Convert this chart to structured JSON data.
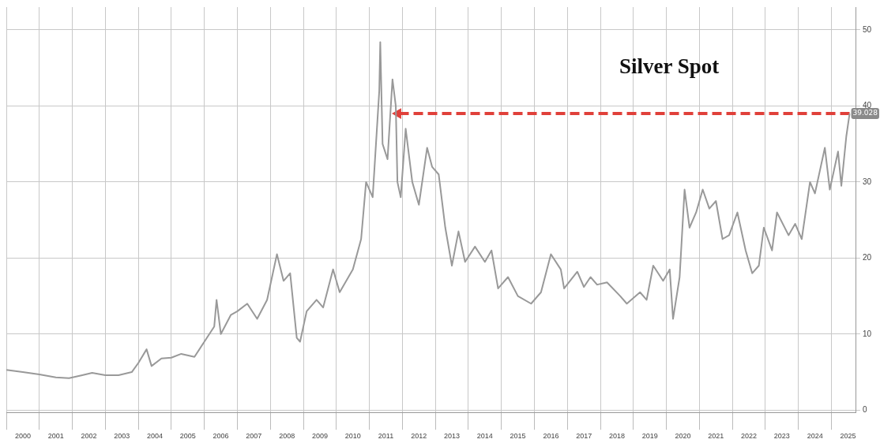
{
  "chart_data": {
    "type": "line",
    "title": "Silver Spot",
    "x": [
      2000.0,
      2000.5,
      2001.0,
      2001.5,
      2001.9,
      2002.3,
      2002.6,
      2003.0,
      2003.4,
      2003.8,
      2004.0,
      2004.25,
      2004.4,
      2004.7,
      2005.0,
      2005.3,
      2005.7,
      2006.0,
      2006.3,
      2006.37,
      2006.5,
      2006.8,
      2007.0,
      2007.3,
      2007.6,
      2007.9,
      2008.2,
      2008.4,
      2008.6,
      2008.8,
      2008.9,
      2009.1,
      2009.4,
      2009.6,
      2009.9,
      2010.1,
      2010.5,
      2010.75,
      2010.9,
      2011.1,
      2011.3,
      2011.33,
      2011.4,
      2011.55,
      2011.7,
      2011.8,
      2011.85,
      2011.95,
      2012.1,
      2012.3,
      2012.5,
      2012.75,
      2012.9,
      2013.1,
      2013.3,
      2013.5,
      2013.7,
      2013.9,
      2014.2,
      2014.5,
      2014.7,
      2014.9,
      2015.2,
      2015.5,
      2015.9,
      2016.2,
      2016.5,
      2016.8,
      2016.9,
      2017.3,
      2017.5,
      2017.7,
      2017.9,
      2018.2,
      2018.6,
      2018.8,
      2019.2,
      2019.4,
      2019.6,
      2019.9,
      2020.1,
      2020.2,
      2020.4,
      2020.55,
      2020.7,
      2020.9,
      2021.1,
      2021.3,
      2021.5,
      2021.7,
      2021.9,
      2022.15,
      2022.4,
      2022.6,
      2022.8,
      2022.95,
      2023.2,
      2023.35,
      2023.7,
      2023.9,
      2024.1,
      2024.35,
      2024.5,
      2024.8,
      2024.95,
      2025.2,
      2025.3,
      2025.45,
      2025.55
    ],
    "series": [
      {
        "color": "#999999",
        "values": [
          5.3,
          5.0,
          4.7,
          4.3,
          4.2,
          4.6,
          4.9,
          4.6,
          4.6,
          5.0,
          6.2,
          8.0,
          5.8,
          6.8,
          6.9,
          7.4,
          7.0,
          9.0,
          11.0,
          14.5,
          10.0,
          12.5,
          13.0,
          14.0,
          12.0,
          14.5,
          20.5,
          17.0,
          18.0,
          9.5,
          9.0,
          13.0,
          14.5,
          13.5,
          18.5,
          15.5,
          18.5,
          22.5,
          30.0,
          28.0,
          42.0,
          48.4,
          35.0,
          33.0,
          43.5,
          40.0,
          30.0,
          28.0,
          37.0,
          30.0,
          27.0,
          34.5,
          32.0,
          31.0,
          24.0,
          19.0,
          23.5,
          19.5,
          21.5,
          19.5,
          21.0,
          16.0,
          17.5,
          15.0,
          14.0,
          15.5,
          20.5,
          18.5,
          16.0,
          18.2,
          16.2,
          17.5,
          16.5,
          16.8,
          15.0,
          14.0,
          15.5,
          14.5,
          19.0,
          17.0,
          18.5,
          12.0,
          17.5,
          29.0,
          24.0,
          26.0,
          29.0,
          26.5,
          27.5,
          22.5,
          23.0,
          26.0,
          21.0,
          18.0,
          19.0,
          24.0,
          21.0,
          26.0,
          23.0,
          24.5,
          22.5,
          30.0,
          28.5,
          34.5,
          29.0,
          34.0,
          29.5,
          36.0,
          39.0
        ]
      },
      {
        "type": "line",
        "color": "#e0403a",
        "line_style": "dashed",
        "marker": "triangle",
        "x": [
          2025.55,
          2011.87
        ],
        "values": [
          39.0,
          39.0
        ]
      }
    ],
    "annotations": [
      {
        "text": "39.028",
        "x": 2025.55,
        "y": 39.0
      }
    ],
    "xlim": [
      2000,
      2025.75
    ],
    "xticks": [
      {
        "value": 2000,
        "label": null
      },
      {
        "value": 2000.5,
        "label": "2000"
      },
      {
        "value": 2001,
        "label": null
      },
      {
        "value": 2001.5,
        "label": "2001"
      },
      {
        "value": 2002,
        "label": null
      },
      {
        "value": 2002.5,
        "label": "2002"
      },
      {
        "value": 2003,
        "label": null
      },
      {
        "value": 2003.5,
        "label": "2003"
      },
      {
        "value": 2004,
        "label": null
      },
      {
        "value": 2004.5,
        "label": "2004"
      },
      {
        "value": 2005,
        "label": null
      },
      {
        "value": 2005.5,
        "label": "2005"
      },
      {
        "value": 2006,
        "label": null
      },
      {
        "value": 2006.5,
        "label": "2006"
      },
      {
        "value": 2007,
        "label": null
      },
      {
        "value": 2007.5,
        "label": "2007"
      },
      {
        "value": 2008,
        "label": null
      },
      {
        "value": 2008.5,
        "label": "2008"
      },
      {
        "value": 2009,
        "label": null
      },
      {
        "value": 2009.5,
        "label": "2009"
      },
      {
        "value": 2010,
        "label": null
      },
      {
        "value": 2010.5,
        "label": "2010"
      },
      {
        "value": 2011,
        "label": null
      },
      {
        "value": 2011.5,
        "label": "2011"
      },
      {
        "value": 2012,
        "label": null
      },
      {
        "value": 2012.5,
        "label": "2012"
      },
      {
        "value": 2013,
        "label": null
      },
      {
        "value": 2013.5,
        "label": "2013"
      },
      {
        "value": 2014,
        "label": null
      },
      {
        "value": 2014.5,
        "label": "2014"
      },
      {
        "value": 2015,
        "label": null
      },
      {
        "value": 2015.5,
        "label": "2015"
      },
      {
        "value": 2016,
        "label": null
      },
      {
        "value": 2016.5,
        "label": "2016"
      },
      {
        "value": 2017,
        "label": null
      },
      {
        "value": 2017.5,
        "label": "2017"
      },
      {
        "value": 2018,
        "label": null
      },
      {
        "value": 2018.5,
        "label": "2018"
      },
      {
        "value": 2019,
        "label": null
      },
      {
        "value": 2019.5,
        "label": "2019"
      },
      {
        "value": 2020,
        "label": null
      },
      {
        "value": 2020.5,
        "label": "2020"
      },
      {
        "value": 2021,
        "label": null
      },
      {
        "value": 2021.5,
        "label": "2021"
      },
      {
        "value": 2022,
        "label": null
      },
      {
        "value": 2022.5,
        "label": "2022"
      },
      {
        "value": 2023,
        "label": null
      },
      {
        "value": 2023.5,
        "label": "2023"
      },
      {
        "value": 2024,
        "label": null
      },
      {
        "value": 2024.5,
        "label": "2024"
      },
      {
        "value": 2025,
        "label": null
      },
      {
        "value": 2025.5,
        "label": "2025"
      }
    ],
    "ylim": [
      -0.3,
      53
    ],
    "yticks": [
      0,
      10,
      20,
      30,
      40,
      50
    ],
    "grid": true,
    "legend": false,
    "marker": "none",
    "line_style": "solid"
  }
}
